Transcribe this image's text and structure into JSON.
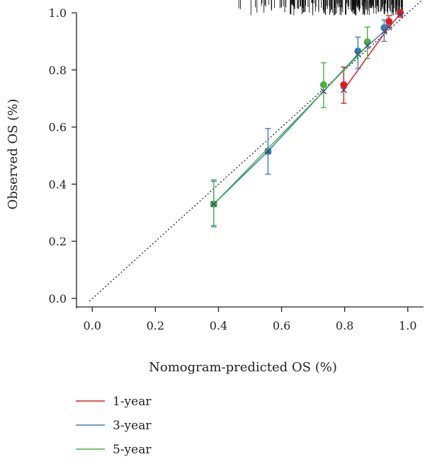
{
  "chart_data": {
    "type": "line",
    "xlabel": "Nomogram-predicted OS (%)",
    "ylabel": "Observed OS (%)",
    "xlim": [
      -0.05,
      1.05
    ],
    "ylim": [
      -0.03,
      1.03
    ],
    "x_ticks": [
      "0.0",
      "0.2",
      "0.4",
      "0.6",
      "0.8",
      "1.0"
    ],
    "y_ticks": [
      "0.0",
      "0.2",
      "0.4",
      "0.6",
      "0.8",
      "1.0"
    ],
    "x_tick_values": [
      0,
      0.2,
      0.4,
      0.6,
      0.8,
      1.0
    ],
    "y_tick_values": [
      0,
      0.2,
      0.4,
      0.6,
      0.8,
      1.0
    ],
    "reference_line": {
      "from": [
        0,
        0
      ],
      "to": [
        1.05,
        1.05
      ],
      "style": "dotted"
    },
    "rug": "top",
    "legend_position": "bottom-left",
    "series": [
      {
        "name": "1-year",
        "color": "#e41a1c",
        "points": [
          {
            "x": 0.797,
            "y": 0.748,
            "lo": 0.683,
            "hi": 0.81,
            "corrected": 0.73
          },
          {
            "x": 0.94,
            "y": 0.97,
            "lo": 0.95,
            "hi": 0.99,
            "corrected": 0.95
          },
          {
            "x": 0.976,
            "y": 1.0,
            "lo": 0.985,
            "hi": 1.01,
            "corrected": 0.995
          }
        ]
      },
      {
        "name": "3-year",
        "color": "#377eb8",
        "points": [
          {
            "x": 0.385,
            "y": 0.33,
            "lo": 0.255,
            "hi": 0.41,
            "corrected": 0.33
          },
          {
            "x": 0.557,
            "y": 0.515,
            "lo": 0.435,
            "hi": 0.595,
            "corrected": 0.515
          },
          {
            "x": 0.842,
            "y": 0.866,
            "lo": 0.805,
            "hi": 0.915,
            "corrected": 0.855
          },
          {
            "x": 0.925,
            "y": 0.948,
            "lo": 0.9,
            "hi": 0.975,
            "corrected": 0.935
          }
        ]
      },
      {
        "name": "5-year",
        "color": "#4daf4a",
        "points": [
          {
            "x": 0.385,
            "y": 0.33,
            "lo": 0.25,
            "hi": 0.415,
            "corrected": 0.33
          },
          {
            "x": 0.733,
            "y": 0.748,
            "lo": 0.668,
            "hi": 0.825,
            "corrected": 0.725
          },
          {
            "x": 0.872,
            "y": 0.898,
            "lo": 0.84,
            "hi": 0.95,
            "corrected": 0.885
          }
        ]
      }
    ]
  }
}
